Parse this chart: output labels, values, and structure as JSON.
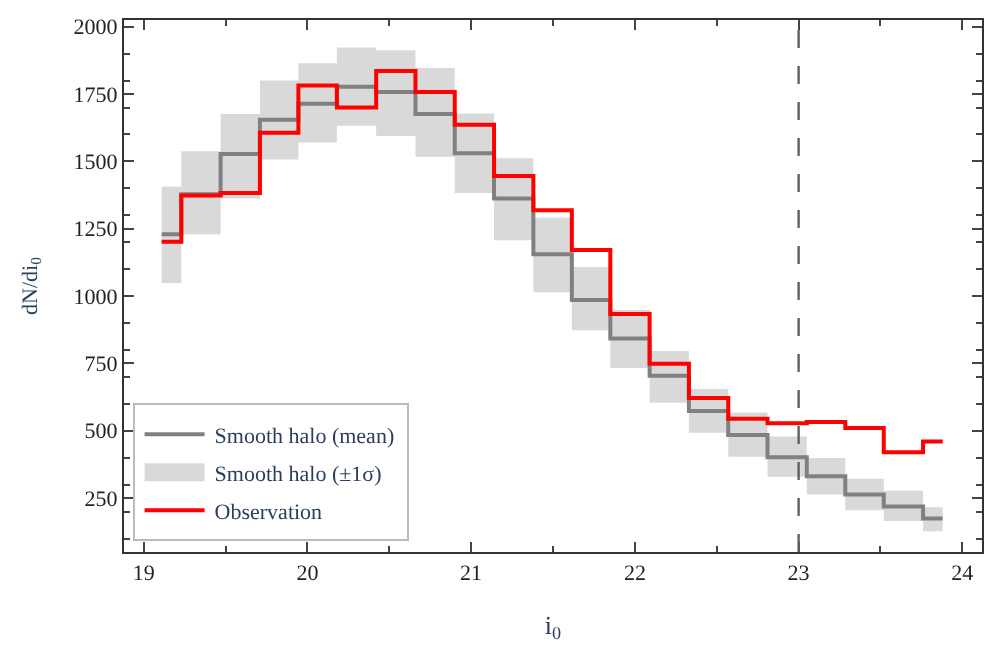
{
  "chart_data": {
    "type": "step",
    "xlabel": "i$_{0}$",
    "ylabel": "dN/di$_{0}$",
    "x": [
      19.11,
      19.35,
      19.59,
      19.83,
      20.06,
      20.3,
      20.54,
      20.78,
      21.02,
      21.26,
      21.5,
      21.73,
      21.97,
      22.21,
      22.45,
      22.69,
      22.93,
      23.17,
      23.4,
      23.64,
      23.88
    ],
    "series": [
      {
        "name": "Smooth halo (mean)",
        "color": "#808080",
        "values": [
          1230,
          1378,
          1528,
          1655,
          1714,
          1777,
          1758,
          1676,
          1530,
          1362,
          1155,
          986,
          843,
          704,
          573,
          484,
          402,
          331,
          263,
          219,
          174
        ],
        "lower": [
          1049,
          1230,
          1362,
          1507,
          1570,
          1632,
          1594,
          1517,
          1383,
          1207,
          1014,
          873,
          733,
          604,
          493,
          404,
          329,
          263,
          205,
          165,
          127
        ],
        "upper": [
          1406,
          1538,
          1676,
          1800,
          1864,
          1923,
          1913,
          1847,
          1678,
          1512,
          1291,
          1108,
          948,
          796,
          655,
          568,
          479,
          399,
          322,
          277,
          216
        ]
      },
      {
        "name": "Observation",
        "color": "#ff0000",
        "values": [
          1202,
          1373,
          1383,
          1606,
          1782,
          1700,
          1836,
          1758,
          1636,
          1446,
          1319,
          1171,
          934,
          749,
          622,
          545,
          528,
          533,
          510,
          420,
          460
        ]
      }
    ],
    "annotations": [
      "Smooth halo (±1σ)"
    ],
    "xlim": [
      18.88,
      24.12
    ],
    "ylim": [
      50,
      2025
    ],
    "xticks": [
      19,
      20,
      21,
      22,
      23,
      24
    ],
    "yticks": [
      250,
      500,
      750,
      1000,
      1250,
      1500,
      1750,
      2000
    ],
    "ref_lines": [
      {
        "axis": "x",
        "value": 23,
        "color": "#606060",
        "line_style": "dashed"
      }
    ],
    "legend": "bottom left"
  }
}
